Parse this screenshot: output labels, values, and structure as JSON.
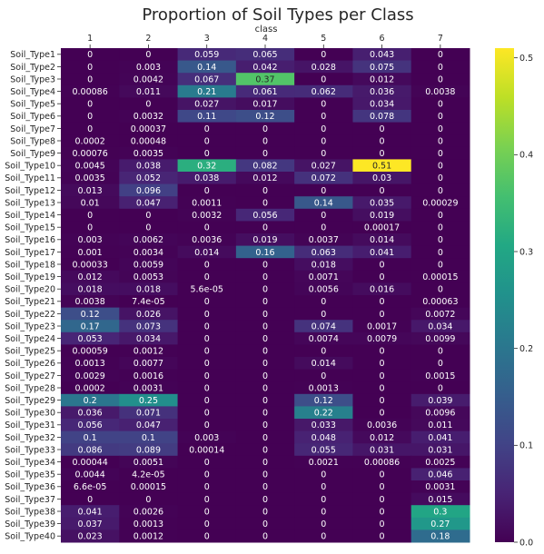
{
  "chart_data": {
    "type": "heatmap",
    "title": "Proportion of Soil Types per Class",
    "xlabel": "class",
    "ylabel": "",
    "colormap": "viridis",
    "colorbar": {
      "min": 0.0,
      "max": 0.51,
      "ticks": [
        "0.0",
        "0.1",
        "0.2",
        "0.3",
        "0.4",
        "0.5"
      ]
    },
    "columns": [
      "1",
      "2",
      "3",
      "4",
      "5",
      "6",
      "7"
    ],
    "rows": [
      "Soil_Type1",
      "Soil_Type2",
      "Soil_Type3",
      "Soil_Type4",
      "Soil_Type5",
      "Soil_Type6",
      "Soil_Type7",
      "Soil_Type8",
      "Soil_Type9",
      "Soil_Type10",
      "Soil_Type11",
      "Soil_Type12",
      "Soil_Type13",
      "Soil_Type14",
      "Soil_Type15",
      "Soil_Type16",
      "Soil_Type17",
      "Soil_Type18",
      "Soil_Type19",
      "Soil_Type20",
      "Soil_Type21",
      "Soil_Type22",
      "Soil_Type23",
      "Soil_Type24",
      "Soil_Type25",
      "Soil_Type26",
      "Soil_Type27",
      "Soil_Type28",
      "Soil_Type29",
      "Soil_Type30",
      "Soil_Type31",
      "Soil_Type32",
      "Soil_Type33",
      "Soil_Type34",
      "Soil_Type35",
      "Soil_Type36",
      "Soil_Type37",
      "Soil_Type38",
      "Soil_Type39",
      "Soil_Type40"
    ],
    "labels": [
      [
        "0",
        "0",
        "0.059",
        "0.065",
        "0",
        "0.043",
        "0"
      ],
      [
        "0",
        "0.003",
        "0.14",
        "0.042",
        "0.028",
        "0.075",
        "0"
      ],
      [
        "0",
        "0.0042",
        "0.067",
        "0.37",
        "0",
        "0.012",
        "0"
      ],
      [
        "0.00086",
        "0.011",
        "0.21",
        "0.061",
        "0.062",
        "0.036",
        "0.0038"
      ],
      [
        "0",
        "0",
        "0.027",
        "0.017",
        "0",
        "0.034",
        "0"
      ],
      [
        "0",
        "0.0032",
        "0.11",
        "0.12",
        "0",
        "0.078",
        "0"
      ],
      [
        "0",
        "0.00037",
        "0",
        "0",
        "0",
        "0",
        "0"
      ],
      [
        "0.0002",
        "0.00048",
        "0",
        "0",
        "0",
        "0",
        "0"
      ],
      [
        "0.00076",
        "0.0035",
        "0",
        "0",
        "0",
        "0",
        "0"
      ],
      [
        "0.0045",
        "0.038",
        "0.32",
        "0.082",
        "0.027",
        "0.51",
        "0"
      ],
      [
        "0.0035",
        "0.052",
        "0.038",
        "0.012",
        "0.072",
        "0.03",
        "0"
      ],
      [
        "0.013",
        "0.096",
        "0",
        "0",
        "0",
        "0",
        "0"
      ],
      [
        "0.01",
        "0.047",
        "0.0011",
        "0",
        "0.14",
        "0.035",
        "0.00029"
      ],
      [
        "0",
        "0",
        "0.0032",
        "0.056",
        "0",
        "0.019",
        "0"
      ],
      [
        "0",
        "0",
        "0",
        "0",
        "0",
        "0.00017",
        "0"
      ],
      [
        "0.003",
        "0.0062",
        "0.0036",
        "0.019",
        "0.0037",
        "0.014",
        "0"
      ],
      [
        "0.001",
        "0.0034",
        "0.014",
        "0.16",
        "0.063",
        "0.041",
        "0"
      ],
      [
        "0.00033",
        "0.0059",
        "0",
        "0",
        "0.018",
        "0",
        "0"
      ],
      [
        "0.012",
        "0.0053",
        "0",
        "0",
        "0.0071",
        "0",
        "0.00015"
      ],
      [
        "0.018",
        "0.018",
        "5.6e-05",
        "0",
        "0.0056",
        "0.016",
        "0"
      ],
      [
        "0.0038",
        "7.4e-05",
        "0",
        "0",
        "0",
        "0",
        "0.00063"
      ],
      [
        "0.12",
        "0.026",
        "0",
        "0",
        "0",
        "0",
        "0.0072"
      ],
      [
        "0.17",
        "0.073",
        "0",
        "0",
        "0.074",
        "0.0017",
        "0.034"
      ],
      [
        "0.053",
        "0.034",
        "0",
        "0",
        "0.0074",
        "0.0079",
        "0.0099"
      ],
      [
        "0.00059",
        "0.0012",
        "0",
        "0",
        "0",
        "0",
        "0"
      ],
      [
        "0.0013",
        "0.0077",
        "0",
        "0",
        "0.014",
        "0",
        "0"
      ],
      [
        "0.0029",
        "0.0016",
        "0",
        "0",
        "0",
        "0",
        "0.0015"
      ],
      [
        "0.0002",
        "0.0031",
        "0",
        "0",
        "0.0013",
        "0",
        "0"
      ],
      [
        "0.2",
        "0.25",
        "0",
        "0",
        "0.12",
        "0",
        "0.039"
      ],
      [
        "0.036",
        "0.071",
        "0",
        "0",
        "0.22",
        "0",
        "0.0096"
      ],
      [
        "0.056",
        "0.047",
        "0",
        "0",
        "0.033",
        "0.0036",
        "0.011"
      ],
      [
        "0.1",
        "0.1",
        "0.003",
        "0",
        "0.048",
        "0.012",
        "0.041"
      ],
      [
        "0.086",
        "0.089",
        "0.00014",
        "0",
        "0.055",
        "0.031",
        "0.031"
      ],
      [
        "0.00044",
        "0.0051",
        "0",
        "0",
        "0.0021",
        "0.00086",
        "0.0025"
      ],
      [
        "0.0044",
        "4.2e-05",
        "0",
        "0",
        "0",
        "0",
        "0.046"
      ],
      [
        "6.6e-05",
        "0.00015",
        "0",
        "0",
        "0",
        "0",
        "0.0031"
      ],
      [
        "0",
        "0",
        "0",
        "0",
        "0",
        "0",
        "0.015"
      ],
      [
        "0.041",
        "0.0026",
        "0",
        "0",
        "0",
        "0",
        "0.3"
      ],
      [
        "0.037",
        "0.0013",
        "0",
        "0",
        "0",
        "0",
        "0.27"
      ],
      [
        "0.023",
        "0.0012",
        "0",
        "0",
        "0",
        "0",
        "0.18"
      ]
    ]
  }
}
